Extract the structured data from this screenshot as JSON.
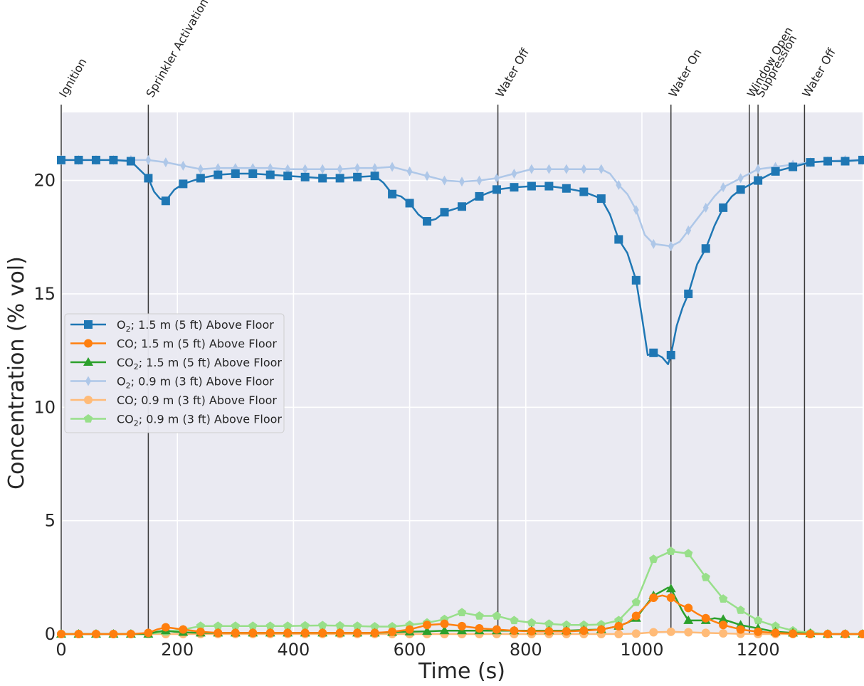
{
  "chart_data": {
    "type": "line",
    "xlabel": "Time (s)",
    "ylabel": "Concentration (% vol)",
    "xlim": [
      0,
      1380
    ],
    "ylim": [
      0,
      23
    ],
    "xticks": [
      "0",
      "200",
      "400",
      "600",
      "800",
      "1000",
      "1200"
    ],
    "yticks": [
      "0",
      "5",
      "10",
      "15",
      "20"
    ],
    "grid": true,
    "legend_position": "center-left",
    "events": [
      {
        "time": 0,
        "label": "Ignition"
      },
      {
        "time": 150,
        "label": "Sprinkler Activation"
      },
      {
        "time": 752,
        "label": "Water Off"
      },
      {
        "time": 1050,
        "label": "Water On"
      },
      {
        "time": 1185,
        "label": "Window Open"
      },
      {
        "time": 1200,
        "label": "Suppression"
      },
      {
        "time": 1280,
        "label": "Water Off"
      }
    ],
    "series": [
      {
        "name": "O2; 1.5 m (5 ft) Above Floor",
        "legend_main": "O",
        "legend_sub": "2",
        "legend_rest": "; 1.5 m (5 ft) Above Floor",
        "color": "#1f77b4",
        "marker": "square",
        "width": 2.5,
        "x": [
          0,
          30,
          60,
          90,
          120,
          150,
          160,
          170,
          180,
          195,
          210,
          240,
          270,
          300,
          330,
          360,
          390,
          420,
          450,
          480,
          510,
          540,
          555,
          570,
          585,
          600,
          615,
          630,
          645,
          660,
          690,
          720,
          750,
          780,
          810,
          840,
          870,
          900,
          930,
          945,
          960,
          975,
          990,
          1000,
          1010,
          1020,
          1035,
          1045,
          1050,
          1060,
          1070,
          1080,
          1095,
          1110,
          1125,
          1140,
          1155,
          1170,
          1185,
          1200,
          1230,
          1260,
          1290,
          1320,
          1350,
          1380
        ],
        "y": [
          20.9,
          20.9,
          20.9,
          20.9,
          20.85,
          20.1,
          19.5,
          19.2,
          19.1,
          19.6,
          19.85,
          20.1,
          20.25,
          20.3,
          20.3,
          20.25,
          20.2,
          20.15,
          20.1,
          20.1,
          20.15,
          20.2,
          19.9,
          19.4,
          19.3,
          19.0,
          18.5,
          18.2,
          18.3,
          18.6,
          18.85,
          19.3,
          19.6,
          19.7,
          19.75,
          19.75,
          19.65,
          19.5,
          19.2,
          18.5,
          17.4,
          16.8,
          15.6,
          14.0,
          12.3,
          12.4,
          12.2,
          11.9,
          12.3,
          13.6,
          14.4,
          15.0,
          16.3,
          17.0,
          18.0,
          18.8,
          19.3,
          19.6,
          19.8,
          20.0,
          20.4,
          20.6,
          20.8,
          20.85,
          20.85,
          20.9
        ]
      },
      {
        "name": "CO; 1.5 m (5 ft) Above Floor",
        "legend_main": "CO",
        "legend_sub": "",
        "legend_rest": "; 1.5 m (5 ft) Above Floor",
        "color": "#ff7f0e",
        "marker": "circle",
        "width": 2.5,
        "x": [
          0,
          30,
          60,
          90,
          120,
          150,
          165,
          180,
          195,
          210,
          240,
          270,
          300,
          330,
          360,
          390,
          420,
          450,
          480,
          510,
          540,
          570,
          600,
          630,
          660,
          690,
          720,
          750,
          780,
          810,
          840,
          870,
          900,
          930,
          960,
          975,
          990,
          1005,
          1020,
          1035,
          1050,
          1065,
          1080,
          1095,
          1110,
          1125,
          1140,
          1170,
          1200,
          1230,
          1260,
          1290,
          1320,
          1350,
          1380
        ],
        "y": [
          0,
          0,
          0,
          0,
          0,
          0.05,
          0.2,
          0.3,
          0.25,
          0.2,
          0.1,
          0.05,
          0.05,
          0.05,
          0.05,
          0.05,
          0.05,
          0.05,
          0.05,
          0.05,
          0.05,
          0.1,
          0.2,
          0.4,
          0.45,
          0.35,
          0.25,
          0.2,
          0.15,
          0.12,
          0.12,
          0.12,
          0.15,
          0.2,
          0.35,
          0.5,
          0.8,
          1.2,
          1.6,
          1.7,
          1.6,
          1.3,
          1.15,
          0.9,
          0.7,
          0.55,
          0.4,
          0.2,
          0.1,
          0.05,
          0.02,
          0,
          0,
          0,
          0
        ]
      },
      {
        "name": "CO2; 1.5 m (5 ft) Above Floor",
        "legend_main": "CO",
        "legend_sub": "2",
        "legend_rest": "; 1.5 m (5 ft) Above Floor",
        "color": "#2ca02c",
        "marker": "triangle",
        "width": 2.5,
        "x": [
          0,
          30,
          60,
          90,
          120,
          150,
          165,
          180,
          195,
          210,
          240,
          270,
          300,
          330,
          360,
          390,
          420,
          450,
          480,
          510,
          540,
          570,
          600,
          630,
          660,
          690,
          720,
          750,
          780,
          810,
          840,
          870,
          900,
          930,
          960,
          975,
          990,
          1005,
          1020,
          1035,
          1045,
          1050,
          1060,
          1070,
          1080,
          1095,
          1110,
          1125,
          1140,
          1170,
          1200,
          1230,
          1260,
          1290,
          1320,
          1350,
          1380
        ],
        "y": [
          0,
          0,
          0,
          0,
          0,
          0,
          0.1,
          0.15,
          0.1,
          0.08,
          0.05,
          0.05,
          0.05,
          0.05,
          0.05,
          0.05,
          0.05,
          0.05,
          0.05,
          0.05,
          0.05,
          0.08,
          0.1,
          0.12,
          0.15,
          0.15,
          0.15,
          0.15,
          0.15,
          0.15,
          0.15,
          0.15,
          0.18,
          0.2,
          0.35,
          0.5,
          0.7,
          1.2,
          1.7,
          1.9,
          2.05,
          2.0,
          1.5,
          1.0,
          0.6,
          0.6,
          0.6,
          0.7,
          0.65,
          0.4,
          0.25,
          0.1,
          0.05,
          0.02,
          0,
          0,
          0
        ]
      },
      {
        "name": "O2; 0.9 m (3 ft) Above Floor",
        "legend_main": "O",
        "legend_sub": "2",
        "legend_rest": "; 0.9 m (3 ft) Above Floor",
        "color": "#aec7e8",
        "marker": "thin_diamond",
        "width": 2.5,
        "x": [
          0,
          30,
          60,
          90,
          120,
          150,
          180,
          210,
          240,
          270,
          300,
          330,
          360,
          390,
          420,
          450,
          480,
          510,
          540,
          570,
          600,
          630,
          660,
          690,
          720,
          750,
          780,
          810,
          840,
          870,
          900,
          930,
          945,
          960,
          975,
          990,
          1005,
          1020,
          1035,
          1050,
          1065,
          1080,
          1095,
          1110,
          1125,
          1140,
          1155,
          1170,
          1185,
          1200,
          1230,
          1260,
          1290,
          1320,
          1350,
          1380
        ],
        "y": [
          20.9,
          20.9,
          20.9,
          20.9,
          20.9,
          20.9,
          20.8,
          20.65,
          20.5,
          20.55,
          20.55,
          20.55,
          20.55,
          20.5,
          20.5,
          20.5,
          20.5,
          20.55,
          20.55,
          20.6,
          20.4,
          20.2,
          20.0,
          19.95,
          20.0,
          20.1,
          20.3,
          20.5,
          20.5,
          20.5,
          20.5,
          20.5,
          20.3,
          19.8,
          19.4,
          18.7,
          17.6,
          17.2,
          17.15,
          17.1,
          17.3,
          17.8,
          18.3,
          18.8,
          19.3,
          19.7,
          19.9,
          20.1,
          20.3,
          20.5,
          20.6,
          20.7,
          20.8,
          20.85,
          20.9,
          20.9
        ]
      },
      {
        "name": "CO; 0.9 m (3 ft) Above Floor",
        "legend_main": "CO",
        "legend_sub": "",
        "legend_rest": "; 0.9 m (3 ft) Above Floor",
        "color": "#ffbb78",
        "marker": "circle",
        "width": 2.5,
        "x": [
          0,
          30,
          60,
          90,
          120,
          150,
          180,
          210,
          240,
          270,
          300,
          330,
          360,
          390,
          420,
          450,
          480,
          510,
          540,
          570,
          600,
          630,
          660,
          690,
          720,
          750,
          780,
          810,
          840,
          870,
          900,
          930,
          960,
          990,
          1020,
          1050,
          1080,
          1110,
          1140,
          1170,
          1200,
          1230,
          1260,
          1290,
          1320,
          1350,
          1380
        ],
        "y": [
          0,
          0,
          0,
          0,
          0,
          0,
          0,
          0,
          0,
          0,
          0,
          0,
          0,
          0,
          0,
          0,
          0,
          0,
          0,
          0,
          0,
          0,
          0,
          0,
          0,
          0,
          0,
          0,
          0,
          0,
          0,
          0,
          0,
          0.02,
          0.08,
          0.1,
          0.08,
          0.05,
          0.03,
          0.01,
          0,
          0,
          0,
          0,
          0,
          0,
          0
        ]
      },
      {
        "name": "CO2; 0.9 m (3 ft) Above Floor",
        "legend_main": "CO",
        "legend_sub": "2",
        "legend_rest": "; 0.9 m (3 ft) Above Floor",
        "color": "#98df8a",
        "marker": "pentagon",
        "width": 2.5,
        "x": [
          0,
          30,
          60,
          90,
          120,
          150,
          180,
          210,
          240,
          270,
          300,
          330,
          360,
          390,
          420,
          450,
          480,
          510,
          540,
          570,
          600,
          630,
          660,
          690,
          720,
          750,
          780,
          810,
          840,
          870,
          900,
          930,
          960,
          990,
          1020,
          1050,
          1080,
          1110,
          1140,
          1170,
          1200,
          1230,
          1260,
          1290,
          1320,
          1350,
          1380
        ],
        "y": [
          0,
          0,
          0,
          0,
          0,
          0,
          0.1,
          0.2,
          0.35,
          0.35,
          0.35,
          0.35,
          0.35,
          0.35,
          0.37,
          0.38,
          0.37,
          0.35,
          0.33,
          0.33,
          0.4,
          0.5,
          0.65,
          0.95,
          0.8,
          0.8,
          0.6,
          0.5,
          0.45,
          0.4,
          0.4,
          0.42,
          0.6,
          1.4,
          3.3,
          3.65,
          3.55,
          2.5,
          1.55,
          1.05,
          0.6,
          0.35,
          0.15,
          0.05,
          0,
          0,
          0
        ]
      }
    ]
  }
}
